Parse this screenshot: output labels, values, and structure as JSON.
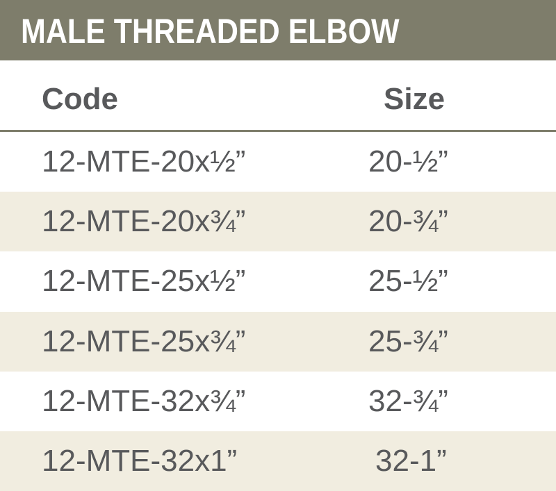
{
  "title": "MALE THREADED ELBOW",
  "columns": {
    "code": "Code",
    "size": "Size"
  },
  "rows": [
    {
      "code": "12-MTE-20x½”",
      "size": "20-½”"
    },
    {
      "code": "12-MTE-20x¾”",
      "size": "20-¾”"
    },
    {
      "code": "12-MTE-25x½”",
      "size": "25-½”"
    },
    {
      "code": "12-MTE-25x¾”",
      "size": "25-¾”"
    },
    {
      "code": "12-MTE-32x¾”",
      "size": "32-¾”"
    },
    {
      "code": "12-MTE-32x1”",
      "size": "32-1”"
    }
  ],
  "colors": {
    "title_bar": "#7e7d6b",
    "shaded_row": "#f1ede0",
    "text": "#58595b"
  }
}
